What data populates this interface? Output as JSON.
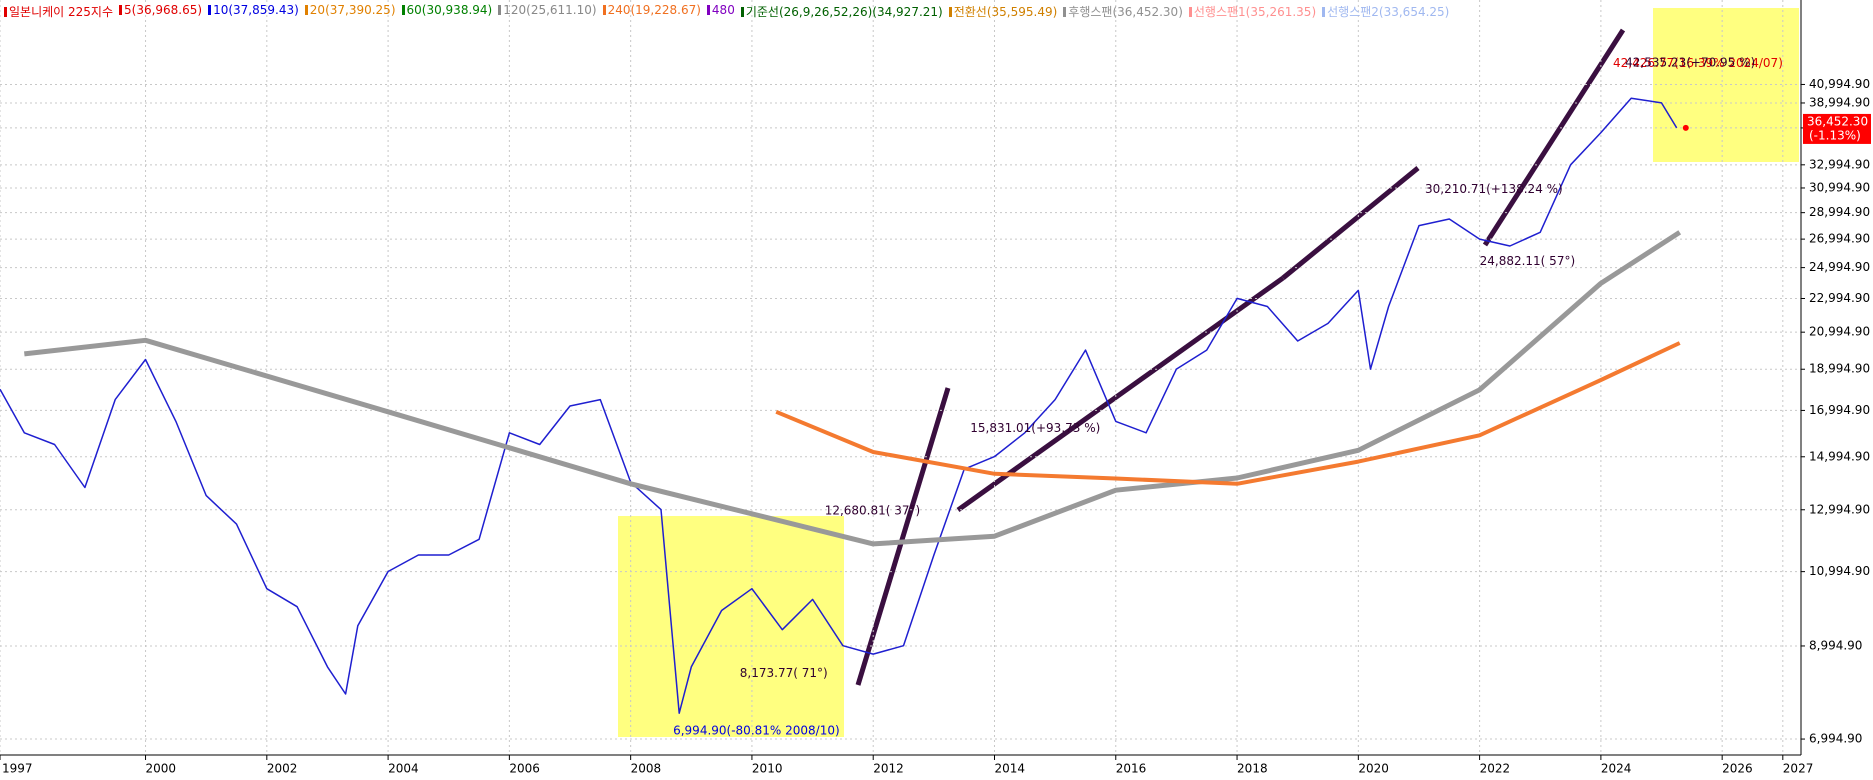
{
  "chart_data": {
    "type": "line",
    "log_scale": true,
    "grid": true,
    "legend": [
      {
        "label": "일본니케이 225지수",
        "color": "#e00000"
      },
      {
        "label": "5(36,968.65)",
        "color": "#e00000"
      },
      {
        "label": "10(37,859.43)",
        "color": "#0000e0"
      },
      {
        "label": "20(37,390.25)",
        "color": "#e08000"
      },
      {
        "label": "60(30,938.94)",
        "color": "#008000"
      },
      {
        "label": "120(25,611.10)",
        "color": "#888888"
      },
      {
        "label": "240(19,228.67)",
        "color": "#f07020"
      },
      {
        "label": "480",
        "color": "#8000c0"
      },
      {
        "label": "기준선(26,9,26,52,26)(34,927.21)",
        "color": "#006000"
      },
      {
        "label": "전환선(35,595.49)",
        "color": "#d08000"
      },
      {
        "label": "후행스팬(36,452.30)",
        "color": "#909090"
      },
      {
        "label": "선행스팬1(35,261.35)",
        "color": "#ff9090"
      },
      {
        "label": "선행스팬2(33,654.25)",
        "color": "#a0b8f0"
      }
    ],
    "series": [
      {
        "color": "#1f1fd0",
        "width": 1.5,
        "x": [
          1997.6,
          1998,
          1998.5,
          1999,
          1999.5,
          2000,
          2000.5,
          2001,
          2001.5,
          2002,
          2002.5,
          2003,
          2003.3,
          2003.5,
          2004,
          2004.5,
          2005,
          2005.5,
          2006,
          2006.5,
          2007,
          2007.5,
          2008,
          2008.5,
          2008.8,
          2009,
          2009.5,
          2010,
          2010.5,
          2011,
          2011.5,
          2012,
          2012.5,
          2013,
          2013.5,
          2014,
          2014.5,
          2015,
          2015.5,
          2016,
          2016.5,
          2017,
          2017.5,
          2018,
          2018.5,
          2019,
          2019.5,
          2020,
          2020.2,
          2020.5,
          2021,
          2021.5,
          2022,
          2022.5,
          2023,
          2023.5,
          2024,
          2024.5,
          2025,
          2025.25
        ],
        "values": [
          18000,
          16000,
          15500,
          13800,
          17500,
          19500,
          16500,
          13500,
          12500,
          10500,
          10000,
          8500,
          7900,
          9500,
          11000,
          11500,
          11500,
          12000,
          16000,
          15500,
          17200,
          17500,
          14000,
          13000,
          7500,
          8500,
          9900,
          10500,
          9400,
          10200,
          9000,
          8800,
          9000,
          11500,
          14500,
          15000,
          16000,
          17500,
          20000,
          16500,
          16000,
          19000,
          20000,
          23000,
          22500,
          20500,
          21500,
          23500,
          19000,
          22500,
          28000,
          28500,
          27000,
          26500,
          27500,
          33000,
          36000,
          39500,
          39000,
          36452
        ]
      },
      {
        "color": "#999999",
        "width": 5,
        "x": [
          1998,
          2000,
          2004,
          2008,
          2012,
          2014,
          2016,
          2018,
          2020,
          2022,
          2024,
          2025.3
        ],
        "values": [
          19800,
          20540,
          16930,
          13940,
          11850,
          12100,
          13700,
          14160,
          15260,
          17970,
          23960,
          27500
        ]
      },
      {
        "color": "#f47a30",
        "width": 4,
        "x": [
          2010.4,
          2012,
          2014,
          2016,
          2018,
          2020,
          2022,
          2024,
          2025.3
        ],
        "values": [
          16930,
          15190,
          14320,
          14140,
          13940,
          14800,
          15890,
          18450,
          20390
        ]
      }
    ],
    "xlim": [
      1997.6,
      2027.3
    ],
    "xticks": [
      {
        "value": 1997.6,
        "label": "1997"
      },
      2000,
      2002,
      2004,
      2006,
      2008,
      2010,
      2012,
      2014,
      2016,
      2018,
      2020,
      2022,
      2024,
      2026,
      2027
    ],
    "ylim": [
      6700,
      51500
    ],
    "yticks": [
      {
        "value": 6994.9,
        "label": "6,994.90"
      },
      {
        "value": 8994.9,
        "label": "8,994.90"
      },
      {
        "value": 10994.9,
        "label": "10,994.90"
      },
      {
        "value": 12994.9,
        "label": "12,994.90"
      },
      {
        "value": 14994.9,
        "label": "14,994.90"
      },
      {
        "value": 16994.9,
        "label": "16,994.90"
      },
      {
        "value": 18994.9,
        "label": "18,994.90"
      },
      {
        "value": 20994.9,
        "label": "20,994.90"
      },
      {
        "value": 22994.9,
        "label": "22,994.90"
      },
      {
        "value": 24994.9,
        "label": "24,994.90"
      },
      {
        "value": 26994.9,
        "label": "26,994.90"
      },
      {
        "value": 28994.9,
        "label": "28,994.90"
      },
      {
        "value": 30994.9,
        "label": "30,994.90"
      },
      {
        "value": 32994.9,
        "label": "32,994.90"
      },
      {
        "value": 36452.3,
        "label": "36,452.30"
      },
      {
        "value": 38994.9,
        "label": "38,994.90"
      },
      {
        "value": 40994.9,
        "label": "40,994.90"
      }
    ],
    "last_price": {
      "value": 36452.3,
      "label": "36,452.30",
      "change": "(-1.13%)"
    },
    "annotations": [
      {
        "text": "42,426.77(16.39% 2024/07)",
        "x": 2024.2,
        "y": 42426.77,
        "color": "#e00000"
      },
      {
        "text": "42,535.23(+70.95 %)",
        "x": 2024.4,
        "y": 42535.23,
        "color": "#300030"
      },
      {
        "text": "30,210.71(+138.24 %)",
        "x": 2021.1,
        "y": 30210.71,
        "color": "#300030"
      },
      {
        "text": "24,882.11( 57°)",
        "x": 2022.0,
        "y": 24882.11,
        "color": "#300030"
      },
      {
        "text": "15,831.01(+93.73 %)",
        "x": 2013.6,
        "y": 15831.01,
        "color": "#300030"
      },
      {
        "text": "12,680.81( 37°)",
        "x": 2011.2,
        "y": 12680.81,
        "color": "#300030"
      },
      {
        "text": "8,173.77( 71°)",
        "x": 2009.8,
        "y": 8173.77,
        "color": "#300030"
      },
      {
        "text": "6,994.90(-80.81% 2008/10)",
        "x": 2008.7,
        "y": 6994.9,
        "color": "#0000e0"
      }
    ]
  }
}
